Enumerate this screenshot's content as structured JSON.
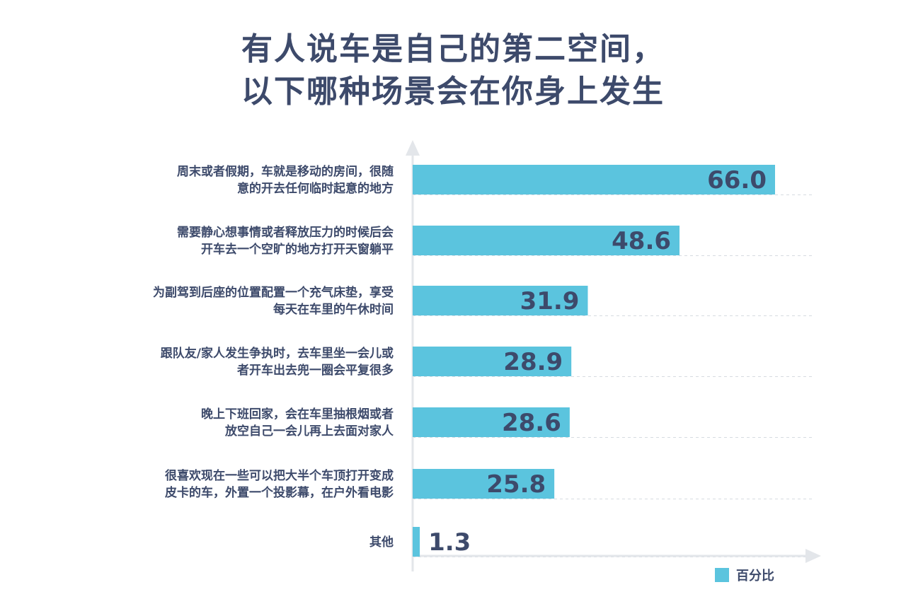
{
  "title": {
    "line1": "有人说车是自己的第二空间，",
    "line2": "以下哪种场景会在你身上发生"
  },
  "colors": {
    "bar": "#5bc4de",
    "text": "#3d4a6b",
    "axis": "#e3e6ea",
    "grid": "#d6dbe1"
  },
  "chart_data": {
    "type": "bar",
    "orientation": "horizontal",
    "categories": [
      [
        "周末或者假期，车就是移动的房间，很随",
        "意的开去任何临时起意的地方"
      ],
      [
        "需要静心想事情或者释放压力的时候后会",
        "开车去一个空旷的地方打开天窗躺平"
      ],
      [
        "为副驾到后座的位置配置一个充气床垫，享受",
        "每天在车里的午休时间"
      ],
      [
        "跟队友/家人发生争执时，去车里坐一会儿或",
        "者开车出去兜一圈会平复很多"
      ],
      [
        "晚上下班回家，会在车里抽根烟或者",
        "放空自己一会儿再上去面对家人"
      ],
      [
        "很喜欢现在一些可以把大半个车顶打开变成",
        "皮卡的车，外置一个投影幕，在户外看电影"
      ],
      [
        "其他"
      ]
    ],
    "series": [
      {
        "name": "百分比",
        "values": [
          66.0,
          48.6,
          31.9,
          28.9,
          28.6,
          25.8,
          1.3
        ],
        "labels": [
          "66.0",
          "48.6",
          "31.9",
          "28.9",
          "28.6",
          "25.8",
          "1.3"
        ]
      }
    ],
    "xlim": [
      0,
      66.0
    ],
    "legend_position": "bottom-right",
    "grid": true
  }
}
